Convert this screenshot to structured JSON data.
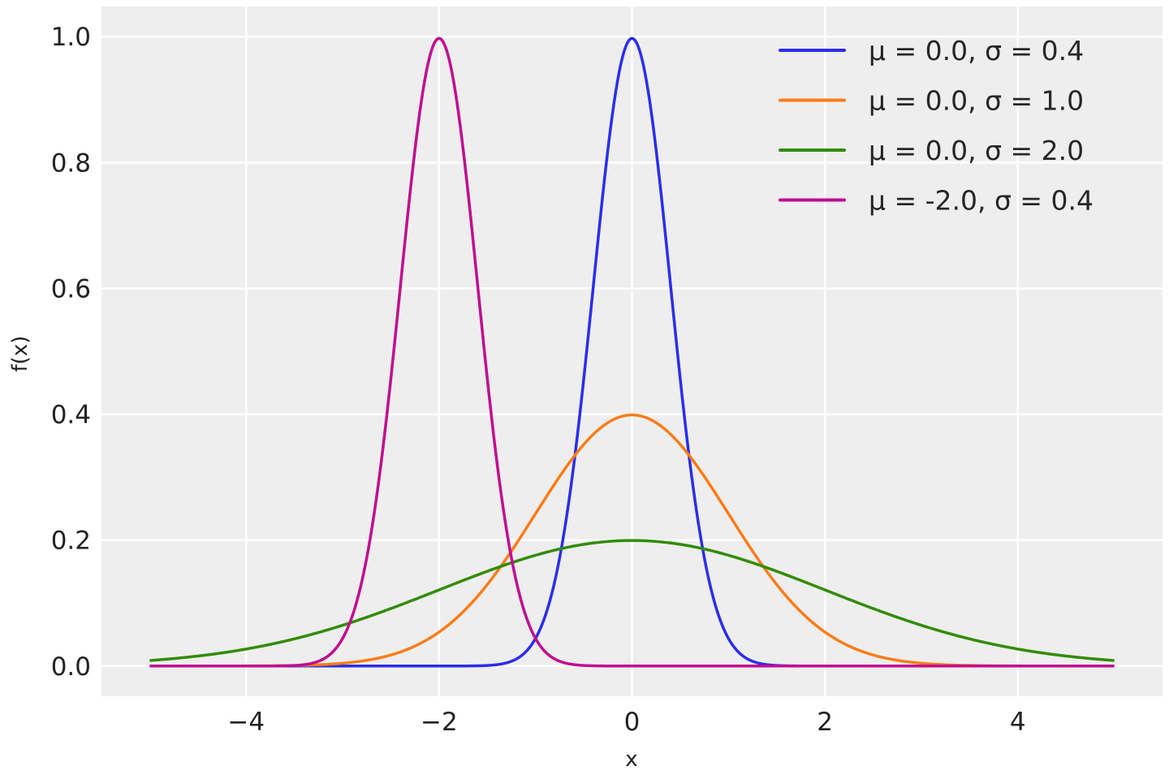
{
  "chart_data": {
    "type": "line",
    "title": "",
    "xlabel": "x",
    "ylabel": "f(x)",
    "xlim": [
      -5.5,
      5.5
    ],
    "ylim": [
      -0.048,
      1.048
    ],
    "x_range": [
      -5,
      5
    ],
    "xticks": [
      -4,
      -2,
      0,
      2,
      4
    ],
    "xtick_labels": [
      "−4",
      "−2",
      "0",
      "2",
      "4"
    ],
    "yticks": [
      0.0,
      0.2,
      0.4,
      0.6,
      0.8,
      1.0
    ],
    "ytick_labels": [
      "0.0",
      "0.2",
      "0.4",
      "0.6",
      "0.8",
      "1.0"
    ],
    "grid": true,
    "background": "#eeeeee",
    "legend_position": "top-right",
    "function": "normal pdf",
    "series": [
      {
        "name": "μ = 0.0, σ = 0.4",
        "mu": 0.0,
        "sigma": 0.4,
        "color": "#2a2eec"
      },
      {
        "name": "μ = 0.0, σ = 1.0",
        "mu": 0.0,
        "sigma": 1.0,
        "color": "#fa7c17"
      },
      {
        "name": "μ = 0.0, σ = 2.0",
        "mu": 0.0,
        "sigma": 2.0,
        "color": "#328c06"
      },
      {
        "name": "μ = -2.0, σ = 0.4",
        "mu": -2.0,
        "sigma": 0.4,
        "color": "#c10c90"
      }
    ]
  }
}
